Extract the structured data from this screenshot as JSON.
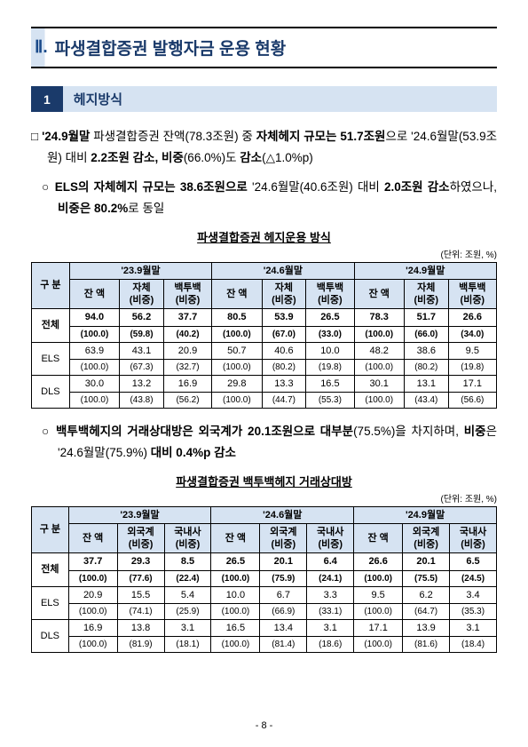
{
  "chapter": {
    "num": "Ⅱ.",
    "text": "파생결합증권 발행자금 운용 현황"
  },
  "section1": {
    "num": "1",
    "text": "헤지방식"
  },
  "para1": "□ '24.9월말 파생결합증권 잔액(78.3조원) 중 자체헤지 규모는 51.7조원으로 '24.6월말(53.9조원) 대비 2.2조원 감소, 비중(66.0%)도 감소(△1.0%p)",
  "para2": "○ ELS의 자체헤지 규모는 38.6조원으로 '24.6월말(40.6조원) 대비 2.0조원 감소하였으나, 비중은 80.2%로 동일",
  "para3": "○ 백투백헤지의 거래상대방은 외국계가 20.1조원으로 대부분(75.5%)을 차지하며, 비중은 '24.6월말(75.9%) 대비 0.4%p 감소",
  "table1": {
    "title": "파생결합증권 헤지운용 방식",
    "unit": "(단위: 조원, %)",
    "periods": [
      "'23.9월말",
      "'24.6월말",
      "'24.9월말"
    ],
    "subheaders": [
      "잔 액",
      "자체\n(비중)",
      "백투백\n(비중)"
    ],
    "rowLabels": [
      "구 분",
      "전체",
      "ELS",
      "DLS"
    ],
    "rows": [
      {
        "label": "전체",
        "cells": [
          "94.0",
          "56.2",
          "37.7",
          "80.5",
          "53.9",
          "26.5",
          "78.3",
          "51.7",
          "26.6"
        ],
        "pcts": [
          "(100.0)",
          "(59.8)",
          "(40.2)",
          "(100.0)",
          "(67.0)",
          "(33.0)",
          "(100.0)",
          "(66.0)",
          "(34.0)"
        ]
      },
      {
        "label": "ELS",
        "cells": [
          "63.9",
          "43.1",
          "20.9",
          "50.7",
          "40.6",
          "10.0",
          "48.2",
          "38.6",
          "9.5"
        ],
        "pcts": [
          "(100.0)",
          "(67.3)",
          "(32.7)",
          "(100.0)",
          "(80.2)",
          "(19.8)",
          "(100.0)",
          "(80.2)",
          "(19.8)"
        ]
      },
      {
        "label": "DLS",
        "cells": [
          "30.0",
          "13.2",
          "16.9",
          "29.8",
          "13.3",
          "16.5",
          "30.1",
          "13.1",
          "17.1"
        ],
        "pcts": [
          "(100.0)",
          "(43.8)",
          "(56.2)",
          "(100.0)",
          "(44.7)",
          "(55.3)",
          "(100.0)",
          "(43.4)",
          "(56.6)"
        ]
      }
    ]
  },
  "table2": {
    "title": "파생결합증권 백투백헤지 거래상대방",
    "unit": "(단위: 조원, %)",
    "periods": [
      "'23.9월말",
      "'24.6월말",
      "'24.9월말"
    ],
    "subheaders": [
      "잔 액",
      "외국계\n(비중)",
      "국내사\n(비중)"
    ],
    "rowLabels": [
      "구 분",
      "전체",
      "ELS",
      "DLS"
    ],
    "rows": [
      {
        "label": "전체",
        "cells": [
          "37.7",
          "29.3",
          "8.5",
          "26.5",
          "20.1",
          "6.4",
          "26.6",
          "20.1",
          "6.5"
        ],
        "pcts": [
          "(100.0)",
          "(77.6)",
          "(22.4)",
          "(100.0)",
          "(75.9)",
          "(24.1)",
          "(100.0)",
          "(75.5)",
          "(24.5)"
        ]
      },
      {
        "label": "ELS",
        "cells": [
          "20.9",
          "15.5",
          "5.4",
          "10.0",
          "6.7",
          "3.3",
          "9.5",
          "6.2",
          "3.4"
        ],
        "pcts": [
          "(100.0)",
          "(74.1)",
          "(25.9)",
          "(100.0)",
          "(66.9)",
          "(33.1)",
          "(100.0)",
          "(64.7)",
          "(35.3)"
        ]
      },
      {
        "label": "DLS",
        "cells": [
          "16.9",
          "13.8",
          "3.1",
          "16.5",
          "13.4",
          "3.1",
          "17.1",
          "13.9",
          "3.1"
        ],
        "pcts": [
          "(100.0)",
          "(81.9)",
          "(18.1)",
          "(100.0)",
          "(81.4)",
          "(18.6)",
          "(100.0)",
          "(81.6)",
          "(18.4)"
        ]
      }
    ]
  },
  "pageNum": "- 8 -"
}
